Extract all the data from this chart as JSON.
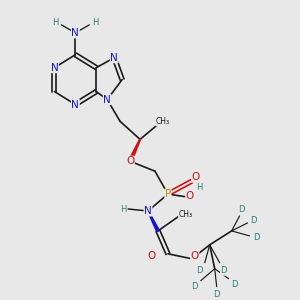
{
  "bg_color": "#e8e8e8",
  "colors": {
    "C": "#1a1a1a",
    "N": "#1414cc",
    "O": "#cc1414",
    "P": "#cc8800",
    "D": "#2a8080",
    "H": "#2a8080"
  }
}
